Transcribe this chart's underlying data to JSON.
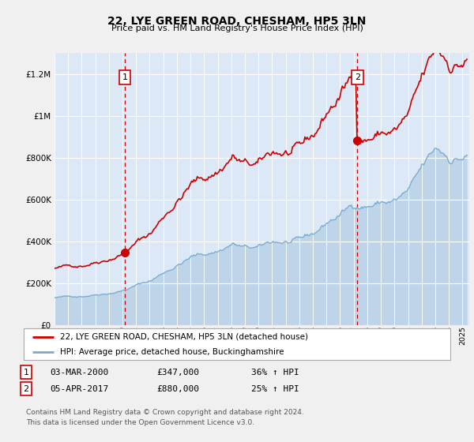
{
  "title": "22, LYE GREEN ROAD, CHESHAM, HP5 3LN",
  "subtitle": "Price paid vs. HM Land Registry's House Price Index (HPI)",
  "ylim": [
    0,
    1300000
  ],
  "yticks": [
    0,
    200000,
    400000,
    600000,
    800000,
    1000000,
    1200000
  ],
  "ytick_labels": [
    "£0",
    "£200K",
    "£400K",
    "£600K",
    "£800K",
    "£1M",
    "£1.2M"
  ],
  "fig_bg_color": "#f0f0f0",
  "plot_bg_color": "#dce8f5",
  "legend_label_red": "22, LYE GREEN ROAD, CHESHAM, HP5 3LN (detached house)",
  "legend_label_blue": "HPI: Average price, detached house, Buckinghamshire",
  "footnote": "Contains HM Land Registry data © Crown copyright and database right 2024.\nThis data is licensed under the Open Government Licence v3.0.",
  "marker1_date": "03-MAR-2000",
  "marker1_price": "£347,000",
  "marker1_hpi": "36% ↑ HPI",
  "marker2_date": "05-APR-2017",
  "marker2_price": "£880,000",
  "marker2_hpi": "25% ↑ HPI",
  "red_color": "#cc0000",
  "blue_color": "#7aabcf",
  "marker1_x": 2000.17,
  "marker1_y": 347000,
  "marker2_x": 2017.27,
  "marker2_y": 880000,
  "xmin": 1995,
  "xmax": 2025.5
}
